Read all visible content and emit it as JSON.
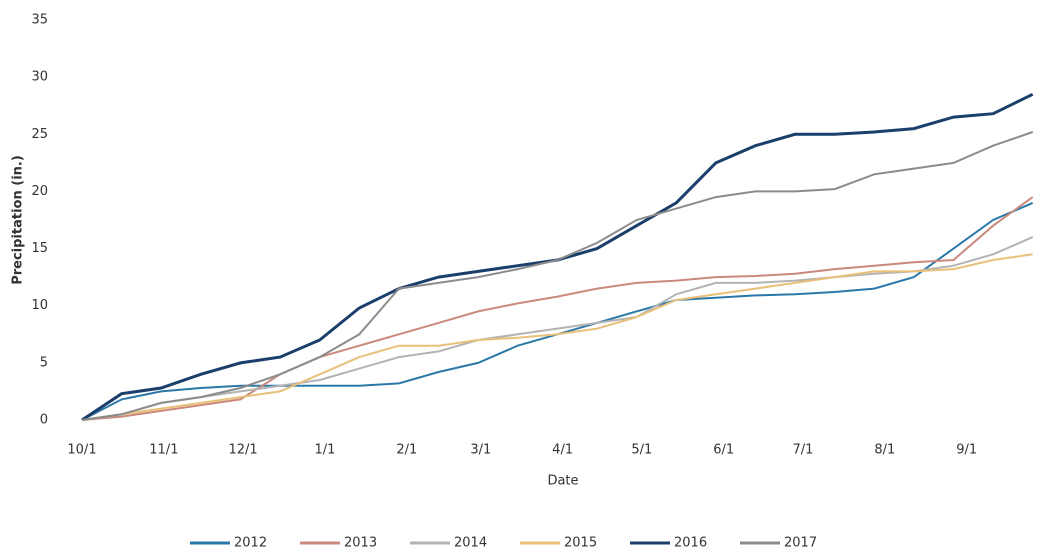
{
  "chart_data": {
    "type": "line",
    "x_label": "Date",
    "y_label": "Precipitation (in.)",
    "x": [
      0,
      15,
      30,
      45,
      60,
      75,
      90,
      105,
      120,
      135,
      150,
      165,
      180,
      195,
      210,
      225,
      240,
      255,
      270,
      285,
      300,
      315,
      330,
      345,
      360
    ],
    "xlim": [
      0,
      362
    ],
    "xticks": [
      {
        "value": 0,
        "label": "10/1"
      },
      {
        "value": 31,
        "label": "11/1"
      },
      {
        "value": 61,
        "label": "12/1"
      },
      {
        "value": 92,
        "label": "1/1"
      },
      {
        "value": 123,
        "label": "2/1"
      },
      {
        "value": 151,
        "label": "3/1"
      },
      {
        "value": 182,
        "label": "4/1"
      },
      {
        "value": 212,
        "label": "5/1"
      },
      {
        "value": 243,
        "label": "6/1"
      },
      {
        "value": 273,
        "label": "7/1"
      },
      {
        "value": 304,
        "label": "8/1"
      },
      {
        "value": 335,
        "label": "9/1"
      }
    ],
    "ylim": [
      0,
      35
    ],
    "yticks": [
      0,
      5,
      10,
      15,
      20,
      25,
      30,
      35
    ],
    "series": [
      {
        "name": "2012",
        "color": "#2b78a8",
        "values": [
          0,
          1.8,
          2.5,
          2.8,
          3,
          3,
          3,
          3,
          3.2,
          4.2,
          5,
          6.5,
          7.5,
          8.5,
          9.5,
          10.5,
          10.7,
          10.9,
          11,
          11.2,
          11.5,
          12.5,
          15,
          17.5,
          19
        ]
      },
      {
        "name": "2013",
        "color": "#c9897c",
        "values": [
          0,
          0.3,
          0.8,
          1.3,
          1.8,
          4,
          5.5,
          6.5,
          7.5,
          8.5,
          9.5,
          10.2,
          10.8,
          11.5,
          12,
          12.2,
          12.5,
          12.6,
          12.8,
          13.2,
          13.5,
          13.8,
          14,
          17,
          19.5
        ]
      },
      {
        "name": "2014",
        "color": "#b3b3b3",
        "values": [
          0,
          0.5,
          1.5,
          2,
          2.5,
          3,
          3.5,
          4.5,
          5.5,
          6,
          7,
          7.5,
          8,
          8.5,
          9,
          11,
          12,
          12,
          12.2,
          12.5,
          12.8,
          13,
          13.5,
          14.5,
          16
        ]
      },
      {
        "name": "2015",
        "color": "#e8c07a",
        "values": [
          0,
          0.5,
          1,
          1.5,
          2,
          2.5,
          4,
          5.5,
          6.5,
          6.5,
          7,
          7.2,
          7.5,
          8,
          9,
          10.5,
          11,
          11.5,
          12,
          12.5,
          13,
          13,
          13.2,
          14,
          14.5
        ]
      },
      {
        "name": "2016",
        "color": "#1b3f6b",
        "values": [
          0,
          2.3,
          2.8,
          4,
          5,
          5.5,
          7,
          9.8,
          11.5,
          12.5,
          13,
          13.5,
          14,
          15,
          17,
          19,
          22.5,
          24,
          25,
          25,
          25.2,
          25.5,
          26.5,
          26.8,
          28.5
        ]
      },
      {
        "name": "2017",
        "color": "#8c8c8c",
        "values": [
          0,
          0.5,
          1.5,
          2,
          2.8,
          4,
          5.5,
          7.5,
          11.5,
          12,
          12.5,
          13.2,
          14,
          15.5,
          17.5,
          18.5,
          19.5,
          20,
          20,
          20.2,
          21.5,
          22,
          22.5,
          24,
          25.2
        ]
      }
    ]
  }
}
